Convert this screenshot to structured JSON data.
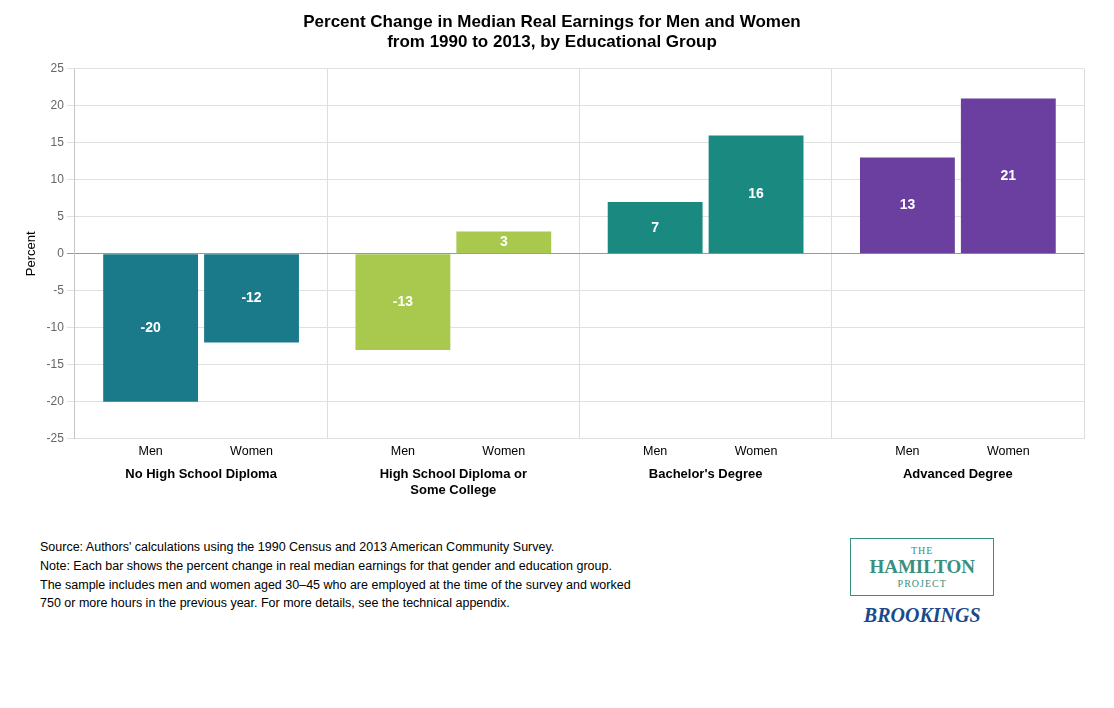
{
  "chart_data": {
    "type": "bar",
    "title": "Percent Change in Median Real Earnings for Men and Women\nfrom 1990 to 2013, by Educational Group",
    "ylabel": "Percent",
    "categories": [
      "No High School Diploma",
      "High School Diploma or\nSome College",
      "Bachelor's Degree",
      "Advanced Degree"
    ],
    "series": [
      {
        "name": "Men",
        "values": [
          -20,
          -13,
          7,
          13
        ],
        "colors": [
          "#1b7a8a",
          "#a8c84e",
          "#1a8a80",
          "#6b3fa0"
        ]
      },
      {
        "name": "Women",
        "values": [
          -12,
          3,
          16,
          21
        ],
        "colors": [
          "#1b7a8a",
          "#a8c84e",
          "#1a8a80",
          "#6b3fa0"
        ]
      }
    ],
    "ylim": [
      -25,
      25
    ],
    "yticks": [
      -25,
      -20,
      -15,
      -10,
      -5,
      0,
      5,
      10,
      15,
      20,
      25
    ],
    "grid": true,
    "data_labels": true,
    "footnotes": [
      "Source: Authors' calculations using the 1990 Census and 2013 American Community Survey.",
      "Note: Each bar shows the percent change in real median earnings for that gender and education group.",
      "The sample includes men and women aged 30–45 who are employed at the time of the survey and worked",
      "750 or more hours in the previous year. For more details, see the technical appendix."
    ],
    "annotations": [
      {
        "text": "THE",
        "color": "#3a9080"
      },
      {
        "text": "HAMILTON",
        "color": "#3a9080"
      },
      {
        "text": "PROJECT",
        "color": "#3a9080"
      },
      {
        "text": "BROOKINGS",
        "color": "#1a4a8a"
      }
    ]
  }
}
